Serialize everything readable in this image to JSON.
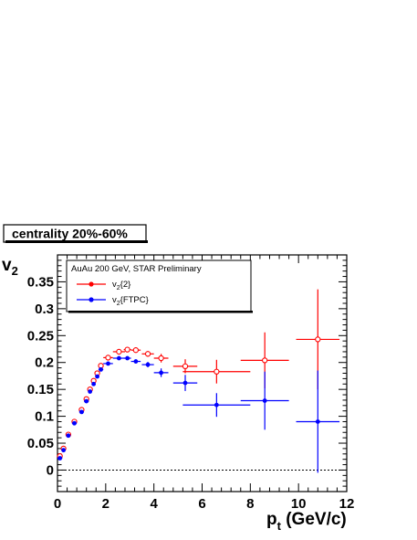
{
  "chart_data": {
    "type": "scatter",
    "title": "",
    "label": "centrality 20%-60%",
    "xlabel": "p",
    "xlabel_sub": "t",
    "xlabel_unit": " (GeV/c)",
    "ylabel": "v",
    "ylabel_sub": "2",
    "xlim": [
      0,
      12
    ],
    "ylim": [
      -0.04,
      0.4
    ],
    "x_ticks": [
      "0",
      "2",
      "4",
      "6",
      "8",
      "10",
      "12"
    ],
    "y_ticks": [
      "0",
      "0.05",
      "0.1",
      "0.15",
      "0.2",
      "0.25",
      "0.3",
      "0.35"
    ],
    "reference_line": {
      "y": 0,
      "style": "dotted"
    },
    "legend": {
      "header": "AuAu 200 GeV, STAR Preliminary",
      "placement": "top-left",
      "entries": [
        {
          "prefix": "v",
          "sub": "2",
          "suffix": "{2}"
        },
        {
          "prefix": "v",
          "sub": "2",
          "suffix": "{FTPC}"
        }
      ]
    },
    "series": [
      {
        "name": "v2{2}",
        "color": "#ff0000",
        "marker": "open-circle",
        "points": [
          {
            "x": 0.1,
            "y": 0.026,
            "xerr": 0.1,
            "yerr": 0
          },
          {
            "x": 0.25,
            "y": 0.04,
            "xerr": 0.05,
            "yerr": 0
          },
          {
            "x": 0.45,
            "y": 0.066,
            "xerr": 0.05,
            "yerr": 0
          },
          {
            "x": 0.7,
            "y": 0.09,
            "xerr": 0.1,
            "yerr": 0
          },
          {
            "x": 1.0,
            "y": 0.112,
            "xerr": 0.1,
            "yerr": 0
          },
          {
            "x": 1.2,
            "y": 0.132,
            "xerr": 0.1,
            "yerr": 0
          },
          {
            "x": 1.35,
            "y": 0.15,
            "xerr": 0.05,
            "yerr": 0
          },
          {
            "x": 1.5,
            "y": 0.166,
            "xerr": 0.05,
            "yerr": 0
          },
          {
            "x": 1.65,
            "y": 0.18,
            "xerr": 0.05,
            "yerr": 0
          },
          {
            "x": 1.8,
            "y": 0.194,
            "xerr": 0.1,
            "yerr": 0
          },
          {
            "x": 2.1,
            "y": 0.209,
            "xerr": 0.2,
            "yerr": 0
          },
          {
            "x": 2.55,
            "y": 0.22,
            "xerr": 0.25,
            "yerr": 0
          },
          {
            "x": 2.9,
            "y": 0.224,
            "xerr": 0.15,
            "yerr": 0
          },
          {
            "x": 3.25,
            "y": 0.223,
            "xerr": 0.2,
            "yerr": 0
          },
          {
            "x": 3.75,
            "y": 0.216,
            "xerr": 0.25,
            "yerr": 0.005
          },
          {
            "x": 4.3,
            "y": 0.208,
            "xerr": 0.3,
            "yerr": 0.008
          },
          {
            "x": 5.3,
            "y": 0.193,
            "xerr": 0.5,
            "yerr": 0.013
          },
          {
            "x": 6.6,
            "y": 0.183,
            "xerr": 1.4,
            "yerr": 0.022
          },
          {
            "x": 8.6,
            "y": 0.204,
            "xerr": 1.0,
            "yerr": 0.052
          },
          {
            "x": 10.8,
            "y": 0.243,
            "xerr": 0.9,
            "yerr": 0.093
          }
        ]
      },
      {
        "name": "v2{FTPC}",
        "color": "#0000ff",
        "marker": "filled-circle",
        "points": [
          {
            "x": 0.1,
            "y": 0.022,
            "xerr": 0.1,
            "yerr": 0
          },
          {
            "x": 0.25,
            "y": 0.037,
            "xerr": 0.05,
            "yerr": 0
          },
          {
            "x": 0.45,
            "y": 0.064,
            "xerr": 0.05,
            "yerr": 0
          },
          {
            "x": 0.7,
            "y": 0.087,
            "xerr": 0.1,
            "yerr": 0
          },
          {
            "x": 1.0,
            "y": 0.108,
            "xerr": 0.1,
            "yerr": 0
          },
          {
            "x": 1.2,
            "y": 0.128,
            "xerr": 0.1,
            "yerr": 0
          },
          {
            "x": 1.35,
            "y": 0.146,
            "xerr": 0.05,
            "yerr": 0
          },
          {
            "x": 1.5,
            "y": 0.16,
            "xerr": 0.05,
            "yerr": 0
          },
          {
            "x": 1.65,
            "y": 0.174,
            "xerr": 0.05,
            "yerr": 0
          },
          {
            "x": 1.8,
            "y": 0.187,
            "xerr": 0.1,
            "yerr": 0
          },
          {
            "x": 2.1,
            "y": 0.198,
            "xerr": 0.2,
            "yerr": 0
          },
          {
            "x": 2.55,
            "y": 0.208,
            "xerr": 0.25,
            "yerr": 0
          },
          {
            "x": 2.9,
            "y": 0.208,
            "xerr": 0.15,
            "yerr": 0
          },
          {
            "x": 3.25,
            "y": 0.202,
            "xerr": 0.2,
            "yerr": 0
          },
          {
            "x": 3.75,
            "y": 0.196,
            "xerr": 0.25,
            "yerr": 0.005
          },
          {
            "x": 4.3,
            "y": 0.181,
            "xerr": 0.3,
            "yerr": 0.008
          },
          {
            "x": 5.3,
            "y": 0.162,
            "xerr": 0.5,
            "yerr": 0.015
          },
          {
            "x": 6.6,
            "y": 0.121,
            "xerr": 1.4,
            "yerr": 0.022
          },
          {
            "x": 8.6,
            "y": 0.129,
            "xerr": 1.0,
            "yerr": 0.054
          },
          {
            "x": 10.8,
            "y": 0.09,
            "xerr": 0.9,
            "yerr": 0.095
          }
        ]
      }
    ]
  }
}
